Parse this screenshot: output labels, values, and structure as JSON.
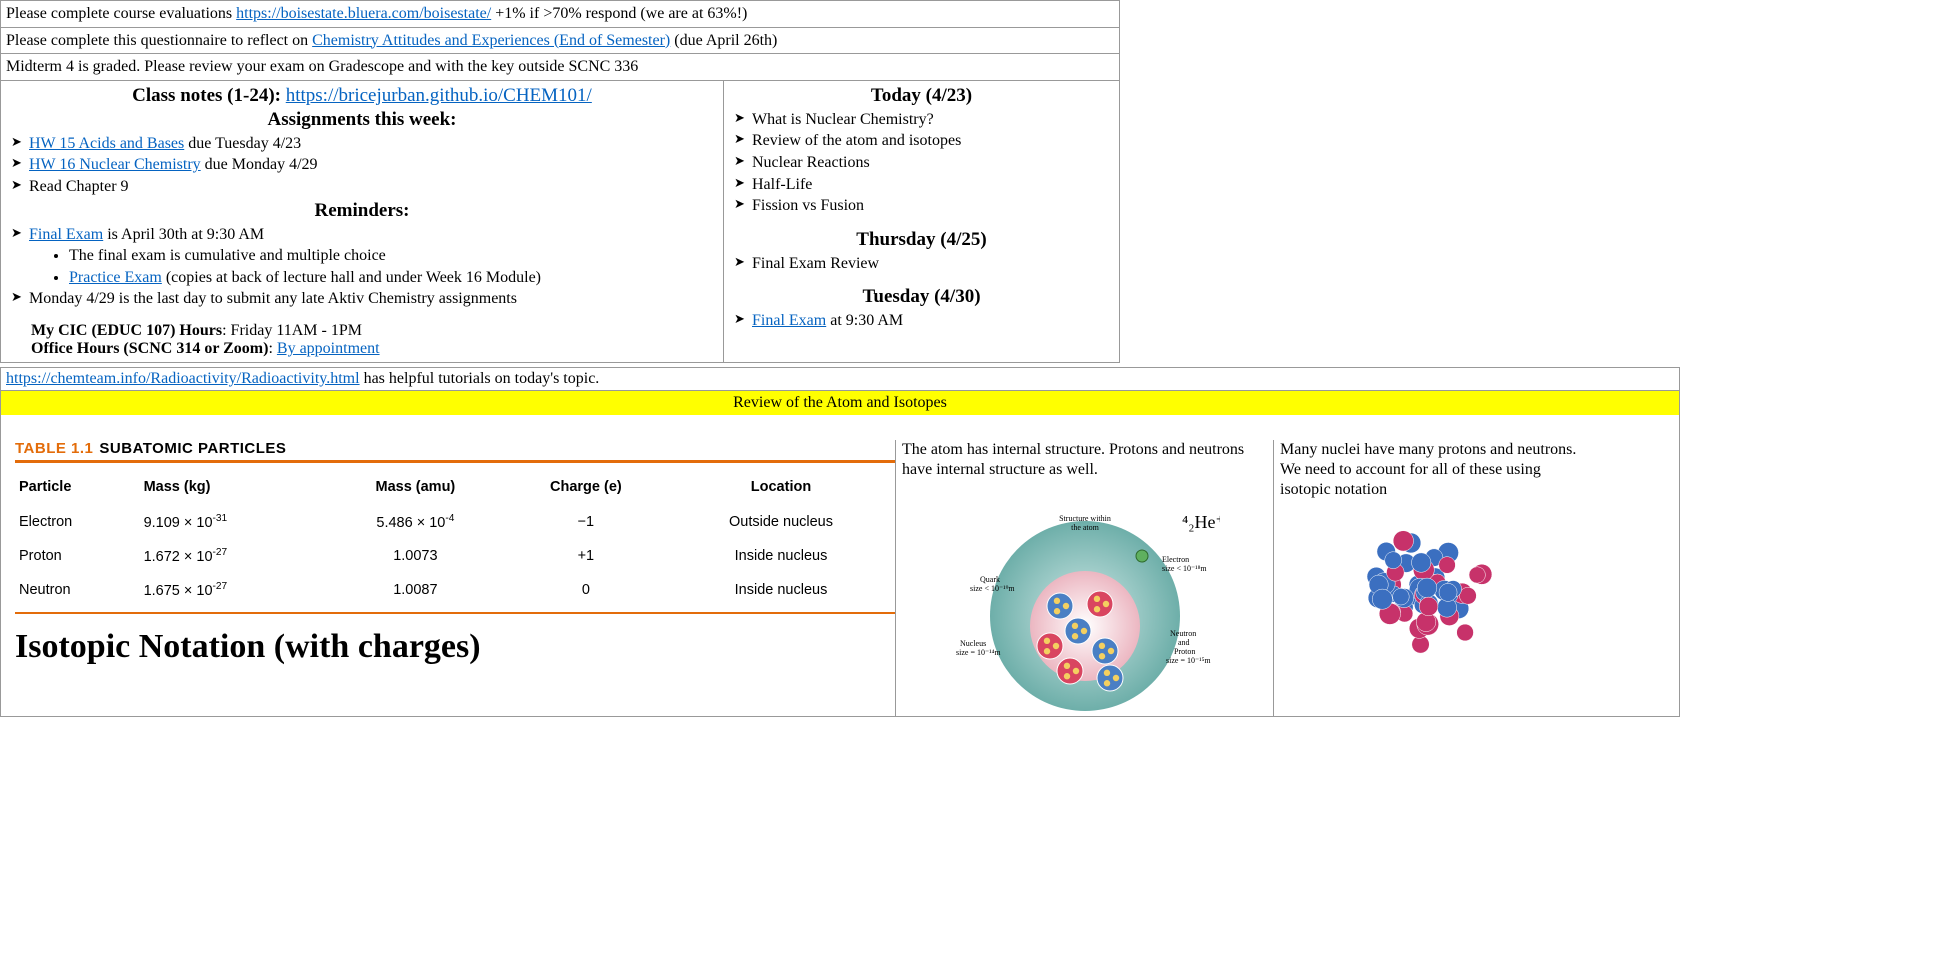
{
  "announcements": [
    {
      "pre": "Please complete course evaluations ",
      "link": "https://boisestate.bluera.com/boisestate/",
      "post": " +1% if >70% respond (we are at 63%!)"
    },
    {
      "pre": "Please complete this questionnaire to reflect on ",
      "link": "Chemistry Attitudes and Experiences (End of Semester)",
      "post": " (due April 26th)"
    },
    {
      "plain": "Midterm 4 is graded. Please review your exam on Gradescope and with the key outside SCNC 336"
    }
  ],
  "left": {
    "notes_label": "Class notes (1-24): ",
    "notes_link": "https://bricejurban.github.io/CHEM101/",
    "assign_title": "Assignments this week:",
    "hw15_link": "HW 15 Acids and Bases",
    "hw15_post": " due Tuesday 4/23",
    "hw16_link": "HW 16 Nuclear Chemistry",
    "hw16_post": " due Monday 4/29",
    "read": "Read Chapter 9",
    "rem_title": "Reminders:",
    "final_link": "Final Exam",
    "final_post": " is April 30th at 9:30 AM",
    "final_b1": "The final exam is cumulative and multiple choice",
    "practice_link": "Practice Exam",
    "practice_post": " (copies at back of lecture hall and under Week 16 Module)",
    "late": "Monday 4/29 is the last day to submit any late Aktiv Chemistry assignments",
    "cic_label": "My CIC (EDUC 107) Hours",
    "cic_val": ": Friday 11AM - 1PM",
    "office_label": "Office Hours (SCNC 314 or Zoom)",
    "office_sep": ": ",
    "office_link": "By appointment"
  },
  "right": {
    "today_title": "Today (4/23)",
    "today_items": [
      "What is Nuclear Chemistry?",
      "Review of the atom and isotopes",
      "Nuclear Reactions",
      "Half-Life",
      "Fission vs Fusion"
    ],
    "thu_title": "Thursday (4/25)",
    "thu_items": [
      "Final Exam Review"
    ],
    "tue_title": "Tuesday (4/30)",
    "tue_link": "Final Exam",
    "tue_post": " at 9:30 AM"
  },
  "tutorial": {
    "link": "https://chemteam.info/Radioactivity/Radioactivity.html",
    "post": " has helpful tutorials on today's topic."
  },
  "section_title": "Review of the Atom and Isotopes",
  "table": {
    "label_orange": "TABLE 1.1",
    "label_black": "SUBATOMIC PARTICLES",
    "cols": [
      "Particle",
      "Mass (kg)",
      "Mass (amu)",
      "Charge (e)",
      "Location"
    ],
    "rows": [
      {
        "p": "Electron",
        "kg": "9.109 × 10",
        "kge": "-31",
        "amu": "5.486 × 10",
        "amue": "-4",
        "ch": "−1",
        "loc": "Outside nucleus"
      },
      {
        "p": "Proton",
        "kg": "1.672 × 10",
        "kge": "-27",
        "amu": "1.0073",
        "amue": "",
        "ch": "+1",
        "loc": "Inside nucleus"
      },
      {
        "p": "Neutron",
        "kg": "1.675 × 10",
        "kge": "-27",
        "amu": "1.0087",
        "amue": "",
        "ch": "0",
        "loc": "Inside nucleus"
      }
    ],
    "iso_heading": "Isotopic Notation (with charges)"
  },
  "mid": {
    "l1": "The atom has internal structure. Protons and neutrons",
    "l2": "have internal structure as well.",
    "svg_title": "Structure within",
    "svg_title2": "the atom",
    "quark": "Quark",
    "quark2": "size < 10⁻¹⁹m",
    "electron": "Electron",
    "electron2": "size < 10⁻¹⁸m",
    "nucleus": "Nucleus",
    "nucleus2": "size = 10⁻¹⁴m",
    "npp": "Neutron",
    "npp2": "and",
    "npp3": "Proton",
    "npp4": "size = 10⁻¹⁵m",
    "he": "⁴₂He⁺"
  },
  "rzone": {
    "l1": "Many nuclei have many protons and neutrons.",
    "l2": "We need to account for all of these using",
    "l3": "isotopic notation"
  },
  "colors": {
    "link": "#0563c1",
    "orange": "#e36c0a",
    "yellow": "#ffff00",
    "teal": "#6fb8b3",
    "pink": "#e8a8b5",
    "red": "#d94560",
    "blue": "#4a7fc4",
    "green": "#5fb05f"
  }
}
